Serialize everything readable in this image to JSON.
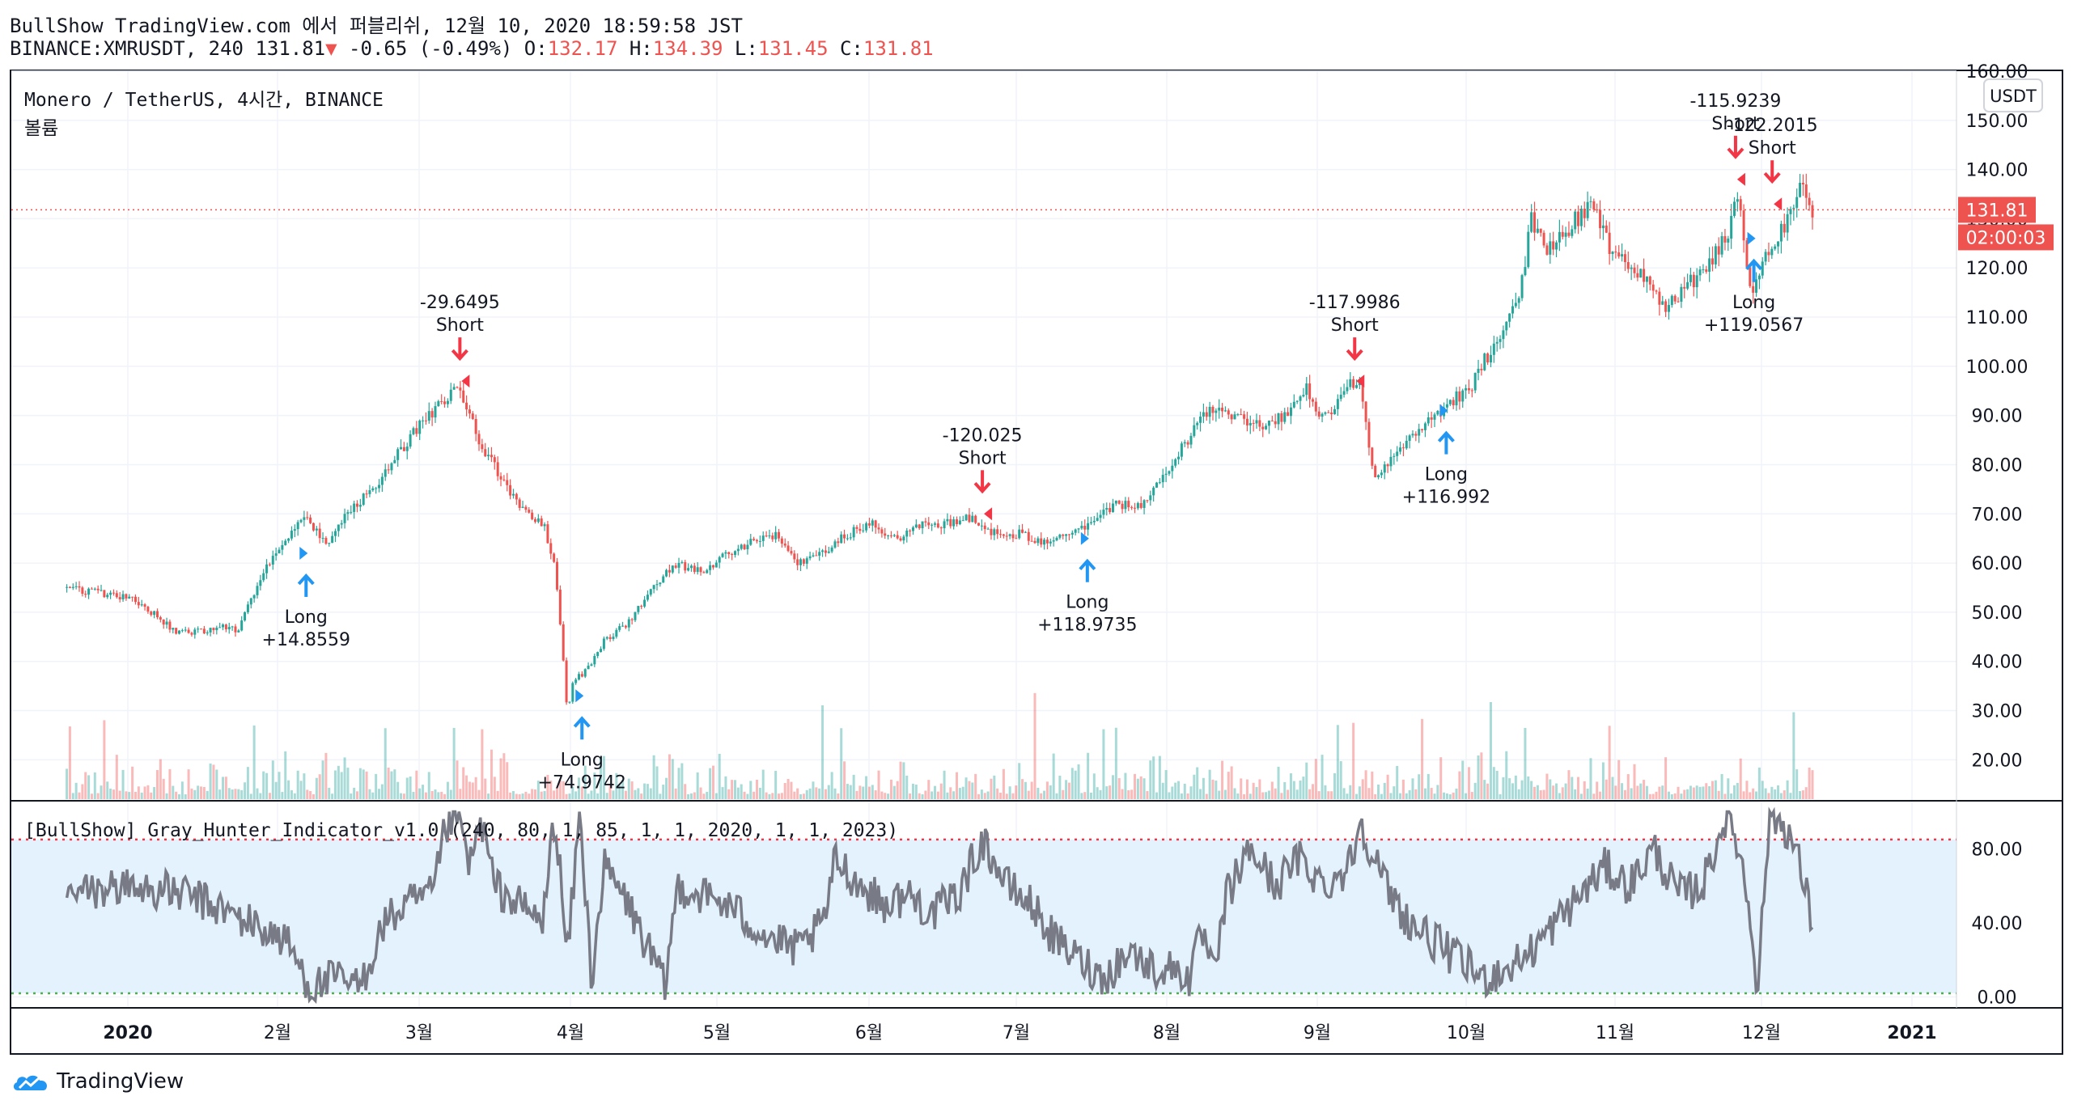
{
  "header": {
    "line1": "BullShow TradingView.com 에서 퍼블리쉬, 12월 10, 2020 18:59:58 JST",
    "symbol": "BINANCE:XMRUSDT, 240",
    "last": "131.81",
    "change_arrow": "▼",
    "change": "-0.65 (-0.49%)",
    "o_label": "O:",
    "o_val": "132.17",
    "h_label": "H:",
    "h_val": "134.39",
    "l_label": "L:",
    "l_val": "131.45",
    "c_label": "C:",
    "c_val": "131.81"
  },
  "colors": {
    "up": "#26a69a",
    "down": "#ef5350",
    "long_arrow": "#2196f3",
    "short_arrow": "#f23645",
    "indicator_line": "#787b86",
    "band_fill": "#e3f2fd",
    "upper_band": "#f23645",
    "lower_band": "#4caf50"
  },
  "chart_data": [
    {
      "type": "candlestick",
      "title": "Monero / TetherUS, 4시간, BINANCE",
      "volume_label": "볼륨",
      "currency_label": "USDT",
      "ylim": [
        12,
        160
      ],
      "y_ticks": [
        "160.00",
        "150.00",
        "140.00",
        "130.00",
        "120.00",
        "110.00",
        "100.00",
        "90.00",
        "80.00",
        "70.00",
        "60.00",
        "50.00",
        "40.00",
        "30.00",
        "20.00"
      ],
      "x_ticks": [
        "2020",
        "2월",
        "3월",
        "4월",
        "5월",
        "6월",
        "7월",
        "8월",
        "9월",
        "10월",
        "11월",
        "12월",
        "2021"
      ],
      "last_price": 131.81,
      "last_price_label": "131.81",
      "countdown_label": "02:00:03",
      "price_path": [
        [
          -0.05,
          55
        ],
        [
          0.0,
          53
        ],
        [
          0.02,
          50
        ],
        [
          0.04,
          46
        ],
        [
          0.06,
          46
        ],
        [
          0.08,
          47
        ],
        [
          0.09,
          46
        ],
        [
          0.1,
          52
        ],
        [
          0.11,
          58
        ],
        [
          0.12,
          62
        ],
        [
          0.13,
          64
        ],
        [
          0.145,
          70
        ],
        [
          0.155,
          66
        ],
        [
          0.165,
          64
        ],
        [
          0.18,
          70
        ],
        [
          0.2,
          75
        ],
        [
          0.22,
          82
        ],
        [
          0.24,
          88
        ],
        [
          0.255,
          92
        ],
        [
          0.27,
          97
        ],
        [
          0.28,
          90
        ],
        [
          0.29,
          84
        ],
        [
          0.3,
          80
        ],
        [
          0.31,
          76
        ],
        [
          0.32,
          72
        ],
        [
          0.33,
          70
        ],
        [
          0.34,
          68
        ],
        [
          0.35,
          60
        ],
        [
          0.355,
          45
        ],
        [
          0.36,
          30
        ],
        [
          0.365,
          36
        ],
        [
          0.375,
          38
        ],
        [
          0.39,
          44
        ],
        [
          0.41,
          48
        ],
        [
          0.43,
          55
        ],
        [
          0.45,
          60
        ],
        [
          0.47,
          58
        ],
        [
          0.49,
          62
        ],
        [
          0.51,
          64
        ],
        [
          0.53,
          66
        ],
        [
          0.55,
          60
        ],
        [
          0.57,
          62
        ],
        [
          0.59,
          66
        ],
        [
          0.61,
          68
        ],
        [
          0.63,
          65
        ],
        [
          0.65,
          68
        ],
        [
          0.67,
          68
        ],
        [
          0.69,
          69
        ],
        [
          0.71,
          66
        ],
        [
          0.73,
          66
        ],
        [
          0.75,
          64
        ],
        [
          0.77,
          66
        ],
        [
          0.79,
          68
        ],
        [
          0.81,
          72
        ],
        [
          0.83,
          72
        ],
        [
          0.85,
          78
        ],
        [
          0.87,
          86
        ],
        [
          0.89,
          92
        ],
        [
          0.91,
          90
        ],
        [
          0.93,
          88
        ],
        [
          0.95,
          90
        ],
        [
          0.965,
          96
        ],
        [
          0.975,
          90
        ],
        [
          0.99,
          92
        ],
        [
          1.0,
          96
        ],
        [
          1.01,
          96
        ],
        [
          1.02,
          78
        ],
        [
          1.03,
          80
        ],
        [
          1.05,
          86
        ],
        [
          1.07,
          90
        ],
        [
          1.085,
          93
        ],
        [
          1.1,
          96
        ],
        [
          1.12,
          105
        ],
        [
          1.14,
          115
        ],
        [
          1.15,
          130
        ],
        [
          1.16,
          124
        ],
        [
          1.18,
          128
        ],
        [
          1.2,
          134
        ],
        [
          1.21,
          126
        ],
        [
          1.22,
          122
        ],
        [
          1.24,
          118
        ],
        [
          1.26,
          112
        ],
        [
          1.27,
          114
        ],
        [
          1.29,
          120
        ],
        [
          1.31,
          126
        ],
        [
          1.32,
          136
        ],
        [
          1.33,
          112
        ],
        [
          1.34,
          122
        ],
        [
          1.36,
          130
        ],
        [
          1.37,
          138
        ],
        [
          1.38,
          131.81
        ]
      ],
      "signals": [
        {
          "type": "Long",
          "value": "+14.8559",
          "t": 0.146,
          "price": 62
        },
        {
          "type": "Short",
          "value": "-29.6495",
          "t": 0.272,
          "price": 97
        },
        {
          "type": "Long",
          "value": "+74.9742",
          "t": 0.372,
          "price": 33
        },
        {
          "type": "Short",
          "value": "-120.025",
          "t": 0.7,
          "price": 70
        },
        {
          "type": "Long",
          "value": "+118.9735",
          "t": 0.786,
          "price": 65
        },
        {
          "type": "Short",
          "value": "-117.9986",
          "t": 1.005,
          "price": 97
        },
        {
          "type": "Long",
          "value": "+116.992",
          "t": 1.08,
          "price": 91
        },
        {
          "type": "Short",
          "value": "-115.9239",
          "t": 1.317,
          "price": 138
        },
        {
          "type": "Short",
          "value": "-122.2015",
          "t": 1.347,
          "price": 133
        },
        {
          "type": "Long",
          "value": "+119.0567",
          "t": 1.332,
          "price": 126
        }
      ]
    },
    {
      "type": "line",
      "title": "[BullShow] Gray_Hunter_Indicator_v1.0 (240, 80, 1, 85, 1, 1, 2020, 1, 1, 2023)",
      "ylim": [
        -5,
        105
      ],
      "y_ticks": [
        "80.00",
        "40.00",
        "0.00"
      ],
      "upper_band": 85,
      "lower_band": 2,
      "path": [
        [
          -0.05,
          55
        ],
        [
          0.0,
          60
        ],
        [
          0.05,
          55
        ],
        [
          0.1,
          40
        ],
        [
          0.13,
          30
        ],
        [
          0.15,
          5
        ],
        [
          0.17,
          10
        ],
        [
          0.19,
          5
        ],
        [
          0.21,
          40
        ],
        [
          0.23,
          50
        ],
        [
          0.25,
          55
        ],
        [
          0.26,
          90
        ],
        [
          0.27,
          100
        ],
        [
          0.28,
          70
        ],
        [
          0.29,
          95
        ],
        [
          0.3,
          60
        ],
        [
          0.32,
          50
        ],
        [
          0.34,
          40
        ],
        [
          0.35,
          100
        ],
        [
          0.36,
          20
        ],
        [
          0.37,
          100
        ],
        [
          0.38,
          10
        ],
        [
          0.39,
          70
        ],
        [
          0.41,
          50
        ],
        [
          0.43,
          20
        ],
        [
          0.44,
          5
        ],
        [
          0.45,
          60
        ],
        [
          0.47,
          55
        ],
        [
          0.49,
          50
        ],
        [
          0.51,
          40
        ],
        [
          0.53,
          30
        ],
        [
          0.55,
          25
        ],
        [
          0.57,
          40
        ],
        [
          0.58,
          75
        ],
        [
          0.6,
          60
        ],
        [
          0.62,
          50
        ],
        [
          0.64,
          55
        ],
        [
          0.66,
          45
        ],
        [
          0.68,
          55
        ],
        [
          0.7,
          85
        ],
        [
          0.72,
          60
        ],
        [
          0.74,
          50
        ],
        [
          0.76,
          30
        ],
        [
          0.78,
          20
        ],
        [
          0.8,
          10
        ],
        [
          0.82,
          25
        ],
        [
          0.84,
          15
        ],
        [
          0.86,
          15
        ],
        [
          0.87,
          10
        ],
        [
          0.88,
          35
        ],
        [
          0.89,
          10
        ],
        [
          0.9,
          55
        ],
        [
          0.92,
          80
        ],
        [
          0.94,
          60
        ],
        [
          0.96,
          75
        ],
        [
          0.98,
          60
        ],
        [
          1.0,
          70
        ],
        [
          1.01,
          95
        ],
        [
          1.03,
          60
        ],
        [
          1.05,
          40
        ],
        [
          1.07,
          30
        ],
        [
          1.09,
          20
        ],
        [
          1.11,
          10
        ],
        [
          1.13,
          15
        ],
        [
          1.15,
          25
        ],
        [
          1.17,
          40
        ],
        [
          1.19,
          55
        ],
        [
          1.21,
          70
        ],
        [
          1.23,
          60
        ],
        [
          1.25,
          80
        ],
        [
          1.27,
          55
        ],
        [
          1.29,
          60
        ],
        [
          1.31,
          100
        ],
        [
          1.32,
          80
        ],
        [
          1.33,
          40
        ],
        [
          1.335,
          5
        ],
        [
          1.345,
          100
        ],
        [
          1.36,
          90
        ],
        [
          1.37,
          70
        ],
        [
          1.38,
          40
        ]
      ]
    }
  ],
  "footer": {
    "brand": "TradingView"
  }
}
